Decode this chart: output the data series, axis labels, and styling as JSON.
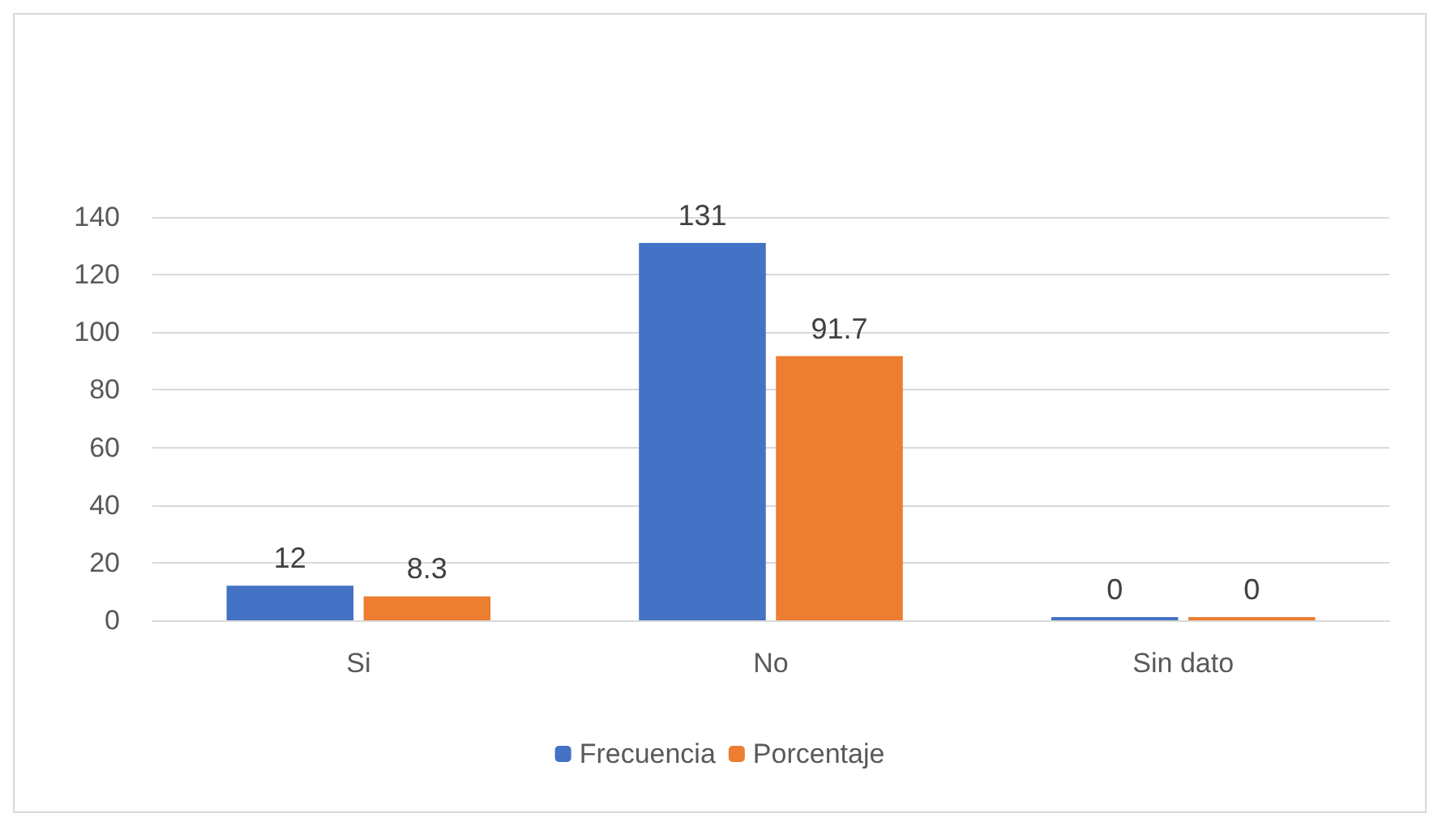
{
  "chart_data": {
    "type": "bar",
    "categories": [
      "Si",
      "No",
      "Sin dato"
    ],
    "series": [
      {
        "name": "Frecuencia",
        "color": "#4472c4",
        "values": [
          12,
          131,
          0
        ]
      },
      {
        "name": "Porcentaje",
        "color": "#ed7d31",
        "values": [
          8.3,
          91.7,
          0
        ]
      }
    ],
    "ylim": [
      0,
      140
    ],
    "yticks": [
      0,
      20,
      40,
      60,
      80,
      100,
      120,
      140
    ],
    "grid": "y",
    "legend": "bottom",
    "data_labels": true
  }
}
